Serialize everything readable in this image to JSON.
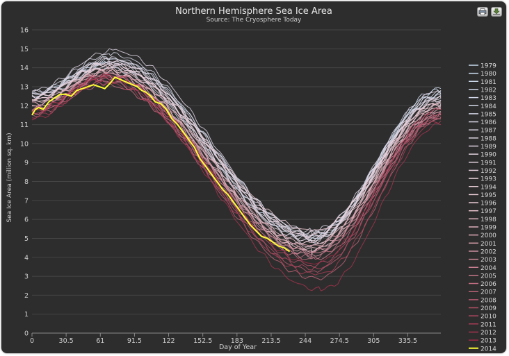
{
  "toolbar": {
    "print_icon": "printer-icon",
    "export_icon": "download-icon"
  },
  "chart_data": {
    "type": "line",
    "title": "Northern Hemisphere Sea Ice Area",
    "subtitle": "Source: The Cryosphere Today",
    "xlabel": "Day of Year",
    "ylabel": "Sea Ice Area (million sq. km)",
    "xlim": [
      0,
      365
    ],
    "ylim": [
      0,
      16
    ],
    "x_ticks": [
      "0",
      "30.5",
      "61",
      "91.5",
      "122",
      "152.5",
      "183",
      "213.5",
      "244",
      "274.5",
      "305",
      "335.5"
    ],
    "x_tick_values": [
      0,
      30.5,
      61,
      91.5,
      122,
      152.5,
      183,
      213.5,
      244,
      274.5,
      305,
      335.5
    ],
    "y_ticks": [
      0,
      1,
      2,
      3,
      4,
      5,
      6,
      7,
      8,
      9,
      10,
      11,
      12,
      13,
      14,
      15,
      16
    ],
    "grid": "horizontal",
    "legend_position": "right",
    "colors": {
      "background": "#2d2d2d",
      "grid": "#454545",
      "text": "#d0d0d0",
      "early_years": "#c9dcef",
      "late_years": "#a02a45",
      "highlight_2014": "#ffff33"
    },
    "series": [
      {
        "name": "1979",
        "x": [
          0,
          65,
          250,
          365
        ],
        "values": [
          12.6,
          14.2,
          5.0,
          12.8
        ]
      },
      {
        "name": "1980",
        "x": [
          0,
          70,
          250,
          365
        ],
        "values": [
          12.5,
          14.3,
          5.2,
          12.6
        ]
      },
      {
        "name": "1981",
        "x": [
          0,
          65,
          250,
          365
        ],
        "values": [
          12.3,
          14.0,
          4.9,
          12.5
        ]
      },
      {
        "name": "1982",
        "x": [
          0,
          72,
          252,
          365
        ],
        "values": [
          12.7,
          14.4,
          5.3,
          12.9
        ]
      },
      {
        "name": "1983",
        "x": [
          0,
          68,
          250,
          365
        ],
        "values": [
          12.5,
          14.1,
          5.1,
          12.5
        ]
      },
      {
        "name": "1984",
        "x": [
          0,
          70,
          248,
          365
        ],
        "values": [
          12.6,
          14.5,
          5.0,
          12.7
        ]
      },
      {
        "name": "1985",
        "x": [
          0,
          70,
          250,
          365
        ],
        "values": [
          12.7,
          14.7,
          5.2,
          12.6
        ]
      },
      {
        "name": "1986",
        "x": [
          0,
          68,
          252,
          365
        ],
        "values": [
          12.4,
          14.3,
          5.1,
          12.4
        ]
      },
      {
        "name": "1987",
        "x": [
          0,
          68,
          250,
          365
        ],
        "values": [
          12.5,
          14.5,
          5.4,
          12.3
        ]
      },
      {
        "name": "1988",
        "x": [
          0,
          72,
          250,
          365
        ],
        "values": [
          12.8,
          14.9,
          5.3,
          12.8
        ]
      },
      {
        "name": "1989",
        "x": [
          0,
          70,
          252,
          365
        ],
        "values": [
          12.6,
          14.4,
          5.0,
          12.5
        ]
      },
      {
        "name": "1990",
        "x": [
          0,
          70,
          248,
          365
        ],
        "values": [
          12.5,
          14.2,
          4.8,
          12.3
        ]
      },
      {
        "name": "1991",
        "x": [
          0,
          68,
          250,
          365
        ],
        "values": [
          12.3,
          14.0,
          4.9,
          12.1
        ]
      },
      {
        "name": "1992",
        "x": [
          0,
          70,
          250,
          365
        ],
        "values": [
          12.4,
          14.3,
          5.2,
          12.4
        ]
      },
      {
        "name": "1993",
        "x": [
          0,
          68,
          248,
          365
        ],
        "values": [
          12.4,
          14.2,
          4.6,
          12.2
        ]
      },
      {
        "name": "1994",
        "x": [
          0,
          68,
          250,
          365
        ],
        "values": [
          12.2,
          14.1,
          5.1,
          12.0
        ]
      },
      {
        "name": "1995",
        "x": [
          0,
          66,
          250,
          365
        ],
        "values": [
          12.0,
          13.8,
          4.4,
          11.9
        ]
      },
      {
        "name": "1996",
        "x": [
          0,
          70,
          252,
          365
        ],
        "values": [
          12.3,
          14.0,
          5.4,
          12.2
        ]
      },
      {
        "name": "1997",
        "x": [
          0,
          68,
          250,
          365
        ],
        "values": [
          12.2,
          13.9,
          4.7,
          12.1
        ]
      },
      {
        "name": "1998",
        "x": [
          0,
          66,
          250,
          365
        ],
        "values": [
          12.1,
          13.8,
          4.5,
          12.0
        ]
      },
      {
        "name": "1999",
        "x": [
          0,
          66,
          250,
          365
        ],
        "values": [
          12.0,
          13.7,
          4.3,
          11.8
        ]
      },
      {
        "name": "2000",
        "x": [
          0,
          66,
          250,
          365
        ],
        "values": [
          11.9,
          13.6,
          4.4,
          11.7
        ]
      },
      {
        "name": "2001",
        "x": [
          0,
          68,
          250,
          365
        ],
        "values": [
          12.1,
          13.8,
          4.6,
          11.8
        ]
      },
      {
        "name": "2002",
        "x": [
          0,
          66,
          250,
          365
        ],
        "values": [
          11.9,
          13.6,
          4.1,
          11.6
        ]
      },
      {
        "name": "2003",
        "x": [
          0,
          66,
          250,
          365
        ],
        "values": [
          11.8,
          13.7,
          4.2,
          11.5
        ]
      },
      {
        "name": "2004",
        "x": [
          0,
          66,
          250,
          365
        ],
        "values": [
          11.8,
          13.5,
          4.3,
          11.5
        ]
      },
      {
        "name": "2005",
        "x": [
          0,
          64,
          252,
          365
        ],
        "values": [
          11.6,
          13.3,
          3.9,
          11.3
        ]
      },
      {
        "name": "2006",
        "x": [
          0,
          64,
          250,
          365
        ],
        "values": [
          11.5,
          13.1,
          4.0,
          11.4
        ]
      },
      {
        "name": "2007",
        "x": [
          0,
          64,
          255,
          365
        ],
        "values": [
          11.6,
          13.3,
          2.9,
          11.3
        ]
      },
      {
        "name": "2008",
        "x": [
          0,
          66,
          252,
          365
        ],
        "values": [
          11.7,
          13.5,
          3.3,
          11.5
        ]
      },
      {
        "name": "2009",
        "x": [
          0,
          66,
          252,
          365
        ],
        "values": [
          11.8,
          13.6,
          3.6,
          11.6
        ]
      },
      {
        "name": "2010",
        "x": [
          0,
          64,
          252,
          365
        ],
        "values": [
          11.6,
          13.5,
          3.4,
          11.4
        ]
      },
      {
        "name": "2011",
        "x": [
          0,
          64,
          255,
          365
        ],
        "values": [
          11.4,
          13.2,
          3.1,
          11.2
        ]
      },
      {
        "name": "2012",
        "x": [
          0,
          64,
          258,
          365
        ],
        "values": [
          11.3,
          13.4,
          2.3,
          11.0
        ]
      },
      {
        "name": "2013",
        "x": [
          0,
          66,
          252,
          365
        ],
        "values": [
          11.7,
          13.6,
          3.7,
          11.8
        ]
      },
      {
        "name": "2014",
        "x": [
          0,
          3,
          6,
          10,
          15,
          20,
          25,
          30,
          35,
          40,
          45,
          50,
          55,
          60,
          65,
          70,
          74,
          78,
          82,
          86,
          90,
          94,
          98,
          102,
          106,
          110,
          115,
          120,
          125,
          130,
          135,
          140,
          145,
          150,
          155,
          160,
          165,
          170,
          175,
          180,
          185,
          190,
          195,
          200,
          205,
          210,
          215,
          220,
          225,
          230
        ],
        "values": [
          11.5,
          11.8,
          11.9,
          11.8,
          12.2,
          12.4,
          12.6,
          12.6,
          12.5,
          12.8,
          12.9,
          13.0,
          13.1,
          13.0,
          12.9,
          13.2,
          13.5,
          13.4,
          13.3,
          13.2,
          13.1,
          13.0,
          12.8,
          12.7,
          12.5,
          12.2,
          12.1,
          11.8,
          11.3,
          11.0,
          10.6,
          10.2,
          9.8,
          9.2,
          8.8,
          8.4,
          8.0,
          7.6,
          7.3,
          6.9,
          6.5,
          6.1,
          5.7,
          5.4,
          5.1,
          5.0,
          4.8,
          4.6,
          4.5,
          4.3
        ]
      }
    ]
  }
}
